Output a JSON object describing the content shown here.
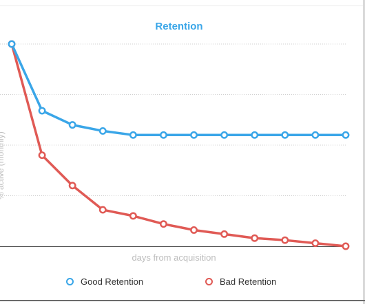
{
  "chart_data": {
    "type": "line",
    "title": "Retention",
    "xlabel": "days from acquisition",
    "ylabel": "% active (monthly)",
    "x": [
      0,
      1,
      2,
      3,
      4,
      5,
      6,
      7,
      8,
      9,
      10,
      11
    ],
    "ylim": [
      0,
      100
    ],
    "grid": true,
    "legend_position": "bottom",
    "series": [
      {
        "name": "Good Retention",
        "color": "#3aa6e8",
        "values": [
          100,
          67,
          60,
          57,
          55,
          55,
          55,
          55,
          55,
          55,
          55,
          55
        ]
      },
      {
        "name": "Bad Retention",
        "color": "#e05a55",
        "values": [
          100,
          45,
          30,
          18,
          15,
          11,
          8,
          6,
          4,
          3,
          1.5,
          0
        ]
      }
    ]
  }
}
